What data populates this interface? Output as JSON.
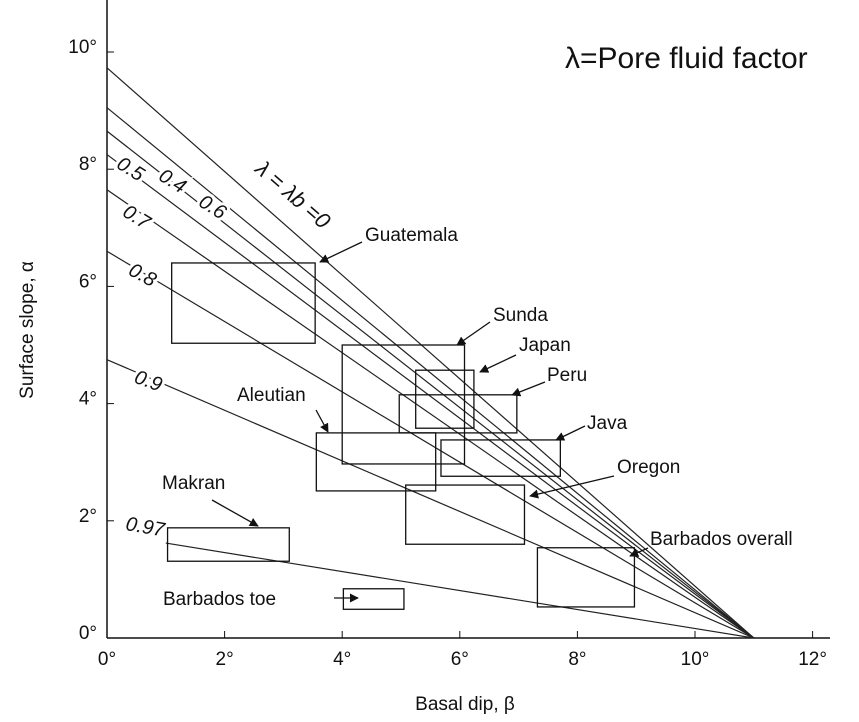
{
  "chart_data": {
    "type": "line",
    "annotation_title": "λ=Pore fluid factor",
    "x_label": "Basal dip, β",
    "y_label": "Surface slope, α",
    "xlim": [
      0,
      12.3
    ],
    "ylim": [
      0,
      10.9
    ],
    "xticks": [
      {
        "value": 0,
        "label": "0°"
      },
      {
        "value": 2,
        "label": "2°"
      },
      {
        "value": 4,
        "label": "4°"
      },
      {
        "value": 6,
        "label": "6°"
      },
      {
        "value": 8,
        "label": "8°"
      },
      {
        "value": 10,
        "label": "10°"
      },
      {
        "value": 12,
        "label": "12°"
      }
    ],
    "yticks": [
      {
        "value": 0,
        "label": "0°"
      },
      {
        "value": 2,
        "label": "2°"
      },
      {
        "value": 4,
        "label": "4°"
      },
      {
        "value": 6,
        "label": "6°"
      },
      {
        "value": 8,
        "label": "8°"
      },
      {
        "value": 10,
        "label": "10°"
      }
    ],
    "series": [
      {
        "name": "λ = λb =0",
        "color": "#222",
        "x": [
          0,
          11
        ],
        "values": [
          9.73,
          0
        ]
      },
      {
        "name": "0.4",
        "color": "#222",
        "x": [
          0,
          11
        ],
        "values": [
          9.05,
          0
        ]
      },
      {
        "name": "0.5",
        "color": "#222",
        "x": [
          0,
          11
        ],
        "values": [
          8.65,
          0
        ]
      },
      {
        "name": "0.6",
        "color": "#222",
        "x": [
          0,
          11
        ],
        "values": [
          8.25,
          0
        ]
      },
      {
        "name": "0.7",
        "color": "#222",
        "x": [
          0,
          11
        ],
        "values": [
          7.65,
          0
        ]
      },
      {
        "name": "0.8",
        "color": "#222",
        "x": [
          0,
          11
        ],
        "values": [
          6.6,
          0
        ]
      },
      {
        "name": "0.9",
        "color": "#222",
        "x": [
          0,
          11
        ],
        "values": [
          4.75,
          0
        ]
      },
      {
        "name": "0.97",
        "color": "#222",
        "x": [
          1,
          11
        ],
        "values": [
          1.62,
          0
        ]
      }
    ],
    "boxes": [
      {
        "x": [
          1.1,
          3.54
        ],
        "y": [
          5.03,
          6.4
        ]
      },
      {
        "label": "Sunda",
        "x": [
          4.0,
          6.08
        ],
        "y": [
          2.97,
          5.0
        ]
      },
      {
        "label": "Japan",
        "x": [
          5.25,
          6.24
        ],
        "y": [
          3.58,
          4.57
        ]
      },
      {
        "label": "Peru",
        "x": [
          4.97,
          6.97
        ],
        "y": [
          3.5,
          4.15
        ]
      },
      {
        "label": "Java",
        "x": [
          5.68,
          7.71
        ],
        "y": [
          2.76,
          3.38
        ]
      },
      {
        "label": "Aleutian",
        "x": [
          3.56,
          5.59
        ],
        "y": [
          2.51,
          3.5
        ]
      },
      {
        "label": "Oregon",
        "x": [
          5.08,
          7.1
        ],
        "y": [
          1.6,
          2.61
        ]
      },
      {
        "label": "Makran",
        "x": [
          1.03,
          3.1
        ],
        "y": [
          1.31,
          1.88
        ]
      },
      {
        "label": "Barbados overall",
        "x": [
          7.32,
          8.97
        ],
        "y": [
          0.53,
          1.54
        ]
      },
      {
        "label": "Barbados toe",
        "x": [
          4.02,
          5.05
        ],
        "y": [
          0.49,
          0.84
        ]
      }
    ],
    "annotations": [
      "Guatemala"
    ]
  }
}
